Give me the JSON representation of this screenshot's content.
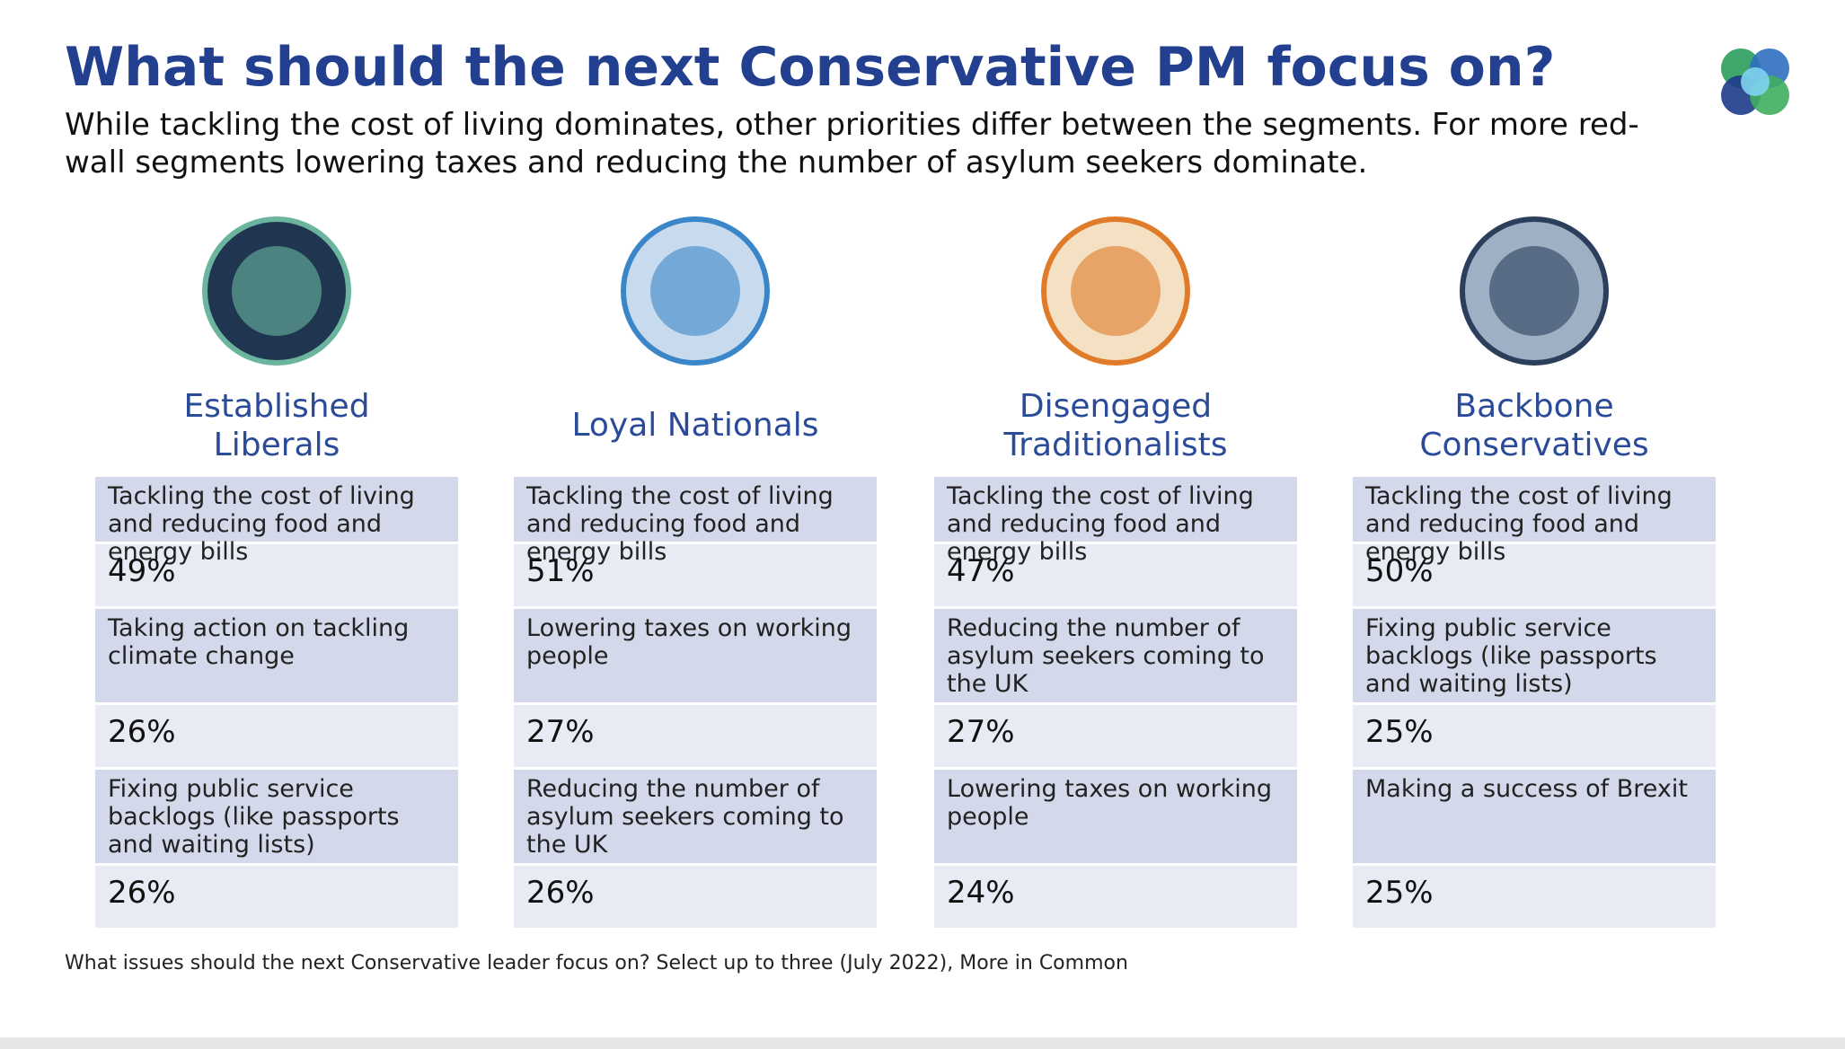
{
  "header": {
    "title": "What should the next Conservative PM focus on?",
    "subtitle": "While tackling the cost of living dominates, other priorities differ between the segments. For more red-wall segments lowering taxes and reducing the number of asylum seekers dominate."
  },
  "segments": [
    {
      "name": "Established Liberals",
      "items": [
        {
          "label": "Tackling the cost of living and reducing food and energy bills",
          "value": "49%"
        },
        {
          "label": "Taking action on tackling climate change",
          "value": "26%"
        },
        {
          "label": "Fixing public service backlogs (like passports and waiting lists)",
          "value": "26%"
        }
      ]
    },
    {
      "name": "Loyal Nationals",
      "items": [
        {
          "label": "Tackling the cost of living and reducing food and energy bills",
          "value": "51%"
        },
        {
          "label": "Lowering taxes on working people",
          "value": "27%"
        },
        {
          "label": "Reducing the number of asylum seekers coming to the UK",
          "value": "26%"
        }
      ]
    },
    {
      "name": "Disengaged Traditionalists",
      "items": [
        {
          "label": "Tackling the cost of living and reducing food and energy bills",
          "value": "47%"
        },
        {
          "label": "Reducing the number of asylum seekers coming to the UK",
          "value": "27%"
        },
        {
          "label": "Lowering taxes on working people",
          "value": "24%"
        }
      ]
    },
    {
      "name": "Backbone Conservatives",
      "items": [
        {
          "label": "Tackling the cost of living and reducing food and energy bills",
          "value": "50%"
        },
        {
          "label": "Fixing public service backlogs (like passports and waiting lists)",
          "value": "25%"
        },
        {
          "label": "Making a success of Brexit",
          "value": "25%"
        }
      ]
    }
  ],
  "footer": {
    "source": "What issues should the next Conservative leader focus on? Select up to three (July 2022), More in Common"
  }
}
